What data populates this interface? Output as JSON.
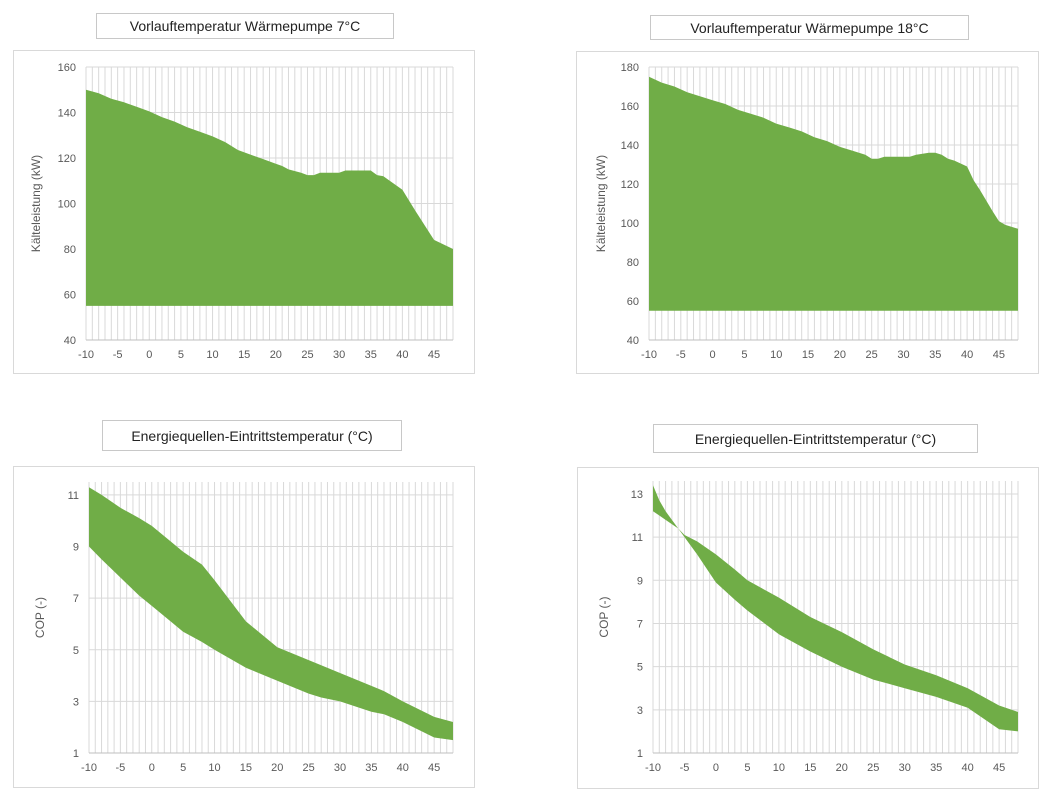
{
  "colors": {
    "fill": "#70ad47",
    "grid": "#d9d9d9",
    "axis": "#bfbfbf",
    "text": "#595959"
  },
  "chart_data": [
    {
      "type": "area",
      "title": "Vorlauftemperatur Wärmepumpe 7°C",
      "xlabel": "",
      "ylabel": "Kälteleistung (kW)",
      "xlim": [
        -10,
        48
      ],
      "ylim": [
        40,
        160
      ],
      "y_ticks": [
        "40",
        "60",
        "80",
        "100",
        "120",
        "140",
        "160"
      ],
      "x_ticks": [
        "-10",
        "-5",
        "0",
        "5",
        "10",
        "15",
        "20",
        "25",
        "30",
        "35",
        "40",
        "45"
      ],
      "grid": true,
      "x": [
        -10,
        -8,
        -6,
        -4,
        -2,
        0,
        2,
        4,
        6,
        8,
        10,
        12,
        14,
        16,
        18,
        20,
        21,
        22,
        24,
        25,
        26,
        27,
        30,
        31,
        32,
        35,
        36,
        37,
        38,
        40,
        42,
        45,
        48
      ],
      "upper": [
        150,
        148.5,
        146,
        144.5,
        142.5,
        140.5,
        138,
        136,
        133.5,
        131.5,
        129.5,
        127,
        123.5,
        121.5,
        119.5,
        117.5,
        116.5,
        115,
        113.5,
        112.5,
        112.5,
        113.5,
        113.5,
        114.5,
        114.5,
        114.5,
        112.5,
        112,
        110,
        106,
        97,
        84,
        80
      ],
      "lower": [
        55,
        55,
        55,
        55,
        55,
        55,
        55,
        55,
        55,
        55,
        55,
        55,
        55,
        55,
        55,
        55,
        55,
        55,
        55,
        55,
        55,
        55,
        55,
        55,
        55,
        55,
        55,
        55,
        55,
        55,
        55,
        55,
        55
      ]
    },
    {
      "type": "area",
      "title": "Vorlauftemperatur Wärmepumpe 18°C",
      "xlabel": "",
      "ylabel": "Kälteleistung (kW)",
      "xlim": [
        -10,
        48
      ],
      "ylim": [
        40,
        180
      ],
      "y_ticks": [
        "40",
        "60",
        "80",
        "100",
        "120",
        "140",
        "160",
        "180"
      ],
      "x_ticks": [
        "-10",
        "-5",
        "0",
        "5",
        "10",
        "15",
        "20",
        "25",
        "30",
        "35",
        "40",
        "45"
      ],
      "grid": true,
      "x": [
        -10,
        -8,
        -6,
        -4,
        -2,
        0,
        2,
        4,
        6,
        8,
        10,
        12,
        14,
        16,
        18,
        20,
        22,
        24,
        25,
        26,
        27,
        30,
        31,
        32,
        34,
        35,
        36,
        37,
        38,
        40,
        41,
        42,
        44,
        45,
        46,
        48
      ],
      "upper": [
        175,
        172,
        170,
        167,
        165,
        163,
        161,
        158,
        156,
        154,
        151,
        149,
        147,
        144,
        142,
        139,
        137,
        135,
        133,
        133,
        134,
        134,
        134,
        135,
        136,
        136,
        135,
        133,
        132,
        129,
        122,
        117,
        106,
        101,
        99,
        97
      ],
      "lower": [
        55,
        55,
        55,
        55,
        55,
        55,
        55,
        55,
        55,
        55,
        55,
        55,
        55,
        55,
        55,
        55,
        55,
        55,
        55,
        55,
        55,
        55,
        55,
        55,
        55,
        55,
        55,
        55,
        55,
        55,
        55,
        55,
        55,
        55,
        55,
        55
      ]
    },
    {
      "type": "area",
      "title": "Energiequellen-Eintrittstemperatur (°C)",
      "xlabel": "",
      "ylabel": "COP (-)",
      "xlim": [
        -10,
        48
      ],
      "ylim": [
        1,
        11.5
      ],
      "y_ticks": [
        "1",
        "3",
        "5",
        "7",
        "9",
        "11"
      ],
      "x_ticks": [
        "-10",
        "-5",
        "0",
        "5",
        "10",
        "15",
        "20",
        "25",
        "30",
        "35",
        "40",
        "45"
      ],
      "grid": true,
      "x": [
        -10,
        -8,
        -5,
        -2,
        0,
        3,
        5,
        8,
        10,
        15,
        20,
        25,
        27,
        30,
        35,
        37,
        40,
        45,
        48
      ],
      "upper": [
        11.3,
        11.0,
        10.5,
        10.1,
        9.8,
        9.2,
        8.8,
        8.3,
        7.7,
        6.1,
        5.1,
        4.6,
        4.4,
        4.1,
        3.6,
        3.4,
        3.0,
        2.4,
        2.2
      ],
      "lower": [
        9.0,
        8.5,
        7.8,
        7.1,
        6.7,
        6.1,
        5.7,
        5.3,
        5.0,
        4.3,
        3.8,
        3.3,
        3.15,
        3.0,
        2.6,
        2.5,
        2.2,
        1.6,
        1.5
      ]
    },
    {
      "type": "area",
      "title": "Energiequellen-Eintrittstemperatur (°C)",
      "xlabel": "",
      "ylabel": "COP (-)",
      "xlim": [
        -10,
        48
      ],
      "ylim": [
        1,
        13.6
      ],
      "y_ticks": [
        "1",
        "3",
        "5",
        "7",
        "9",
        "11",
        "13"
      ],
      "x_ticks": [
        "-10",
        "-5",
        "0",
        "5",
        "10",
        "15",
        "20",
        "25",
        "30",
        "35",
        "40",
        "45"
      ],
      "grid": true,
      "x": [
        -10,
        -9,
        -8,
        -6,
        -5,
        -3,
        0,
        3,
        5,
        10,
        15,
        20,
        25,
        30,
        35,
        40,
        45,
        48
      ],
      "upper": [
        13.4,
        12.7,
        12.2,
        11.4,
        11.1,
        10.8,
        10.2,
        9.5,
        9.0,
        8.2,
        7.3,
        6.6,
        5.8,
        5.1,
        4.6,
        4.0,
        3.2,
        2.9
      ],
      "lower": [
        12.2,
        12.0,
        11.8,
        11.4,
        11.0,
        10.2,
        8.9,
        8.1,
        7.6,
        6.5,
        5.7,
        5.0,
        4.4,
        4.0,
        3.6,
        3.1,
        2.1,
        2.0
      ]
    }
  ]
}
